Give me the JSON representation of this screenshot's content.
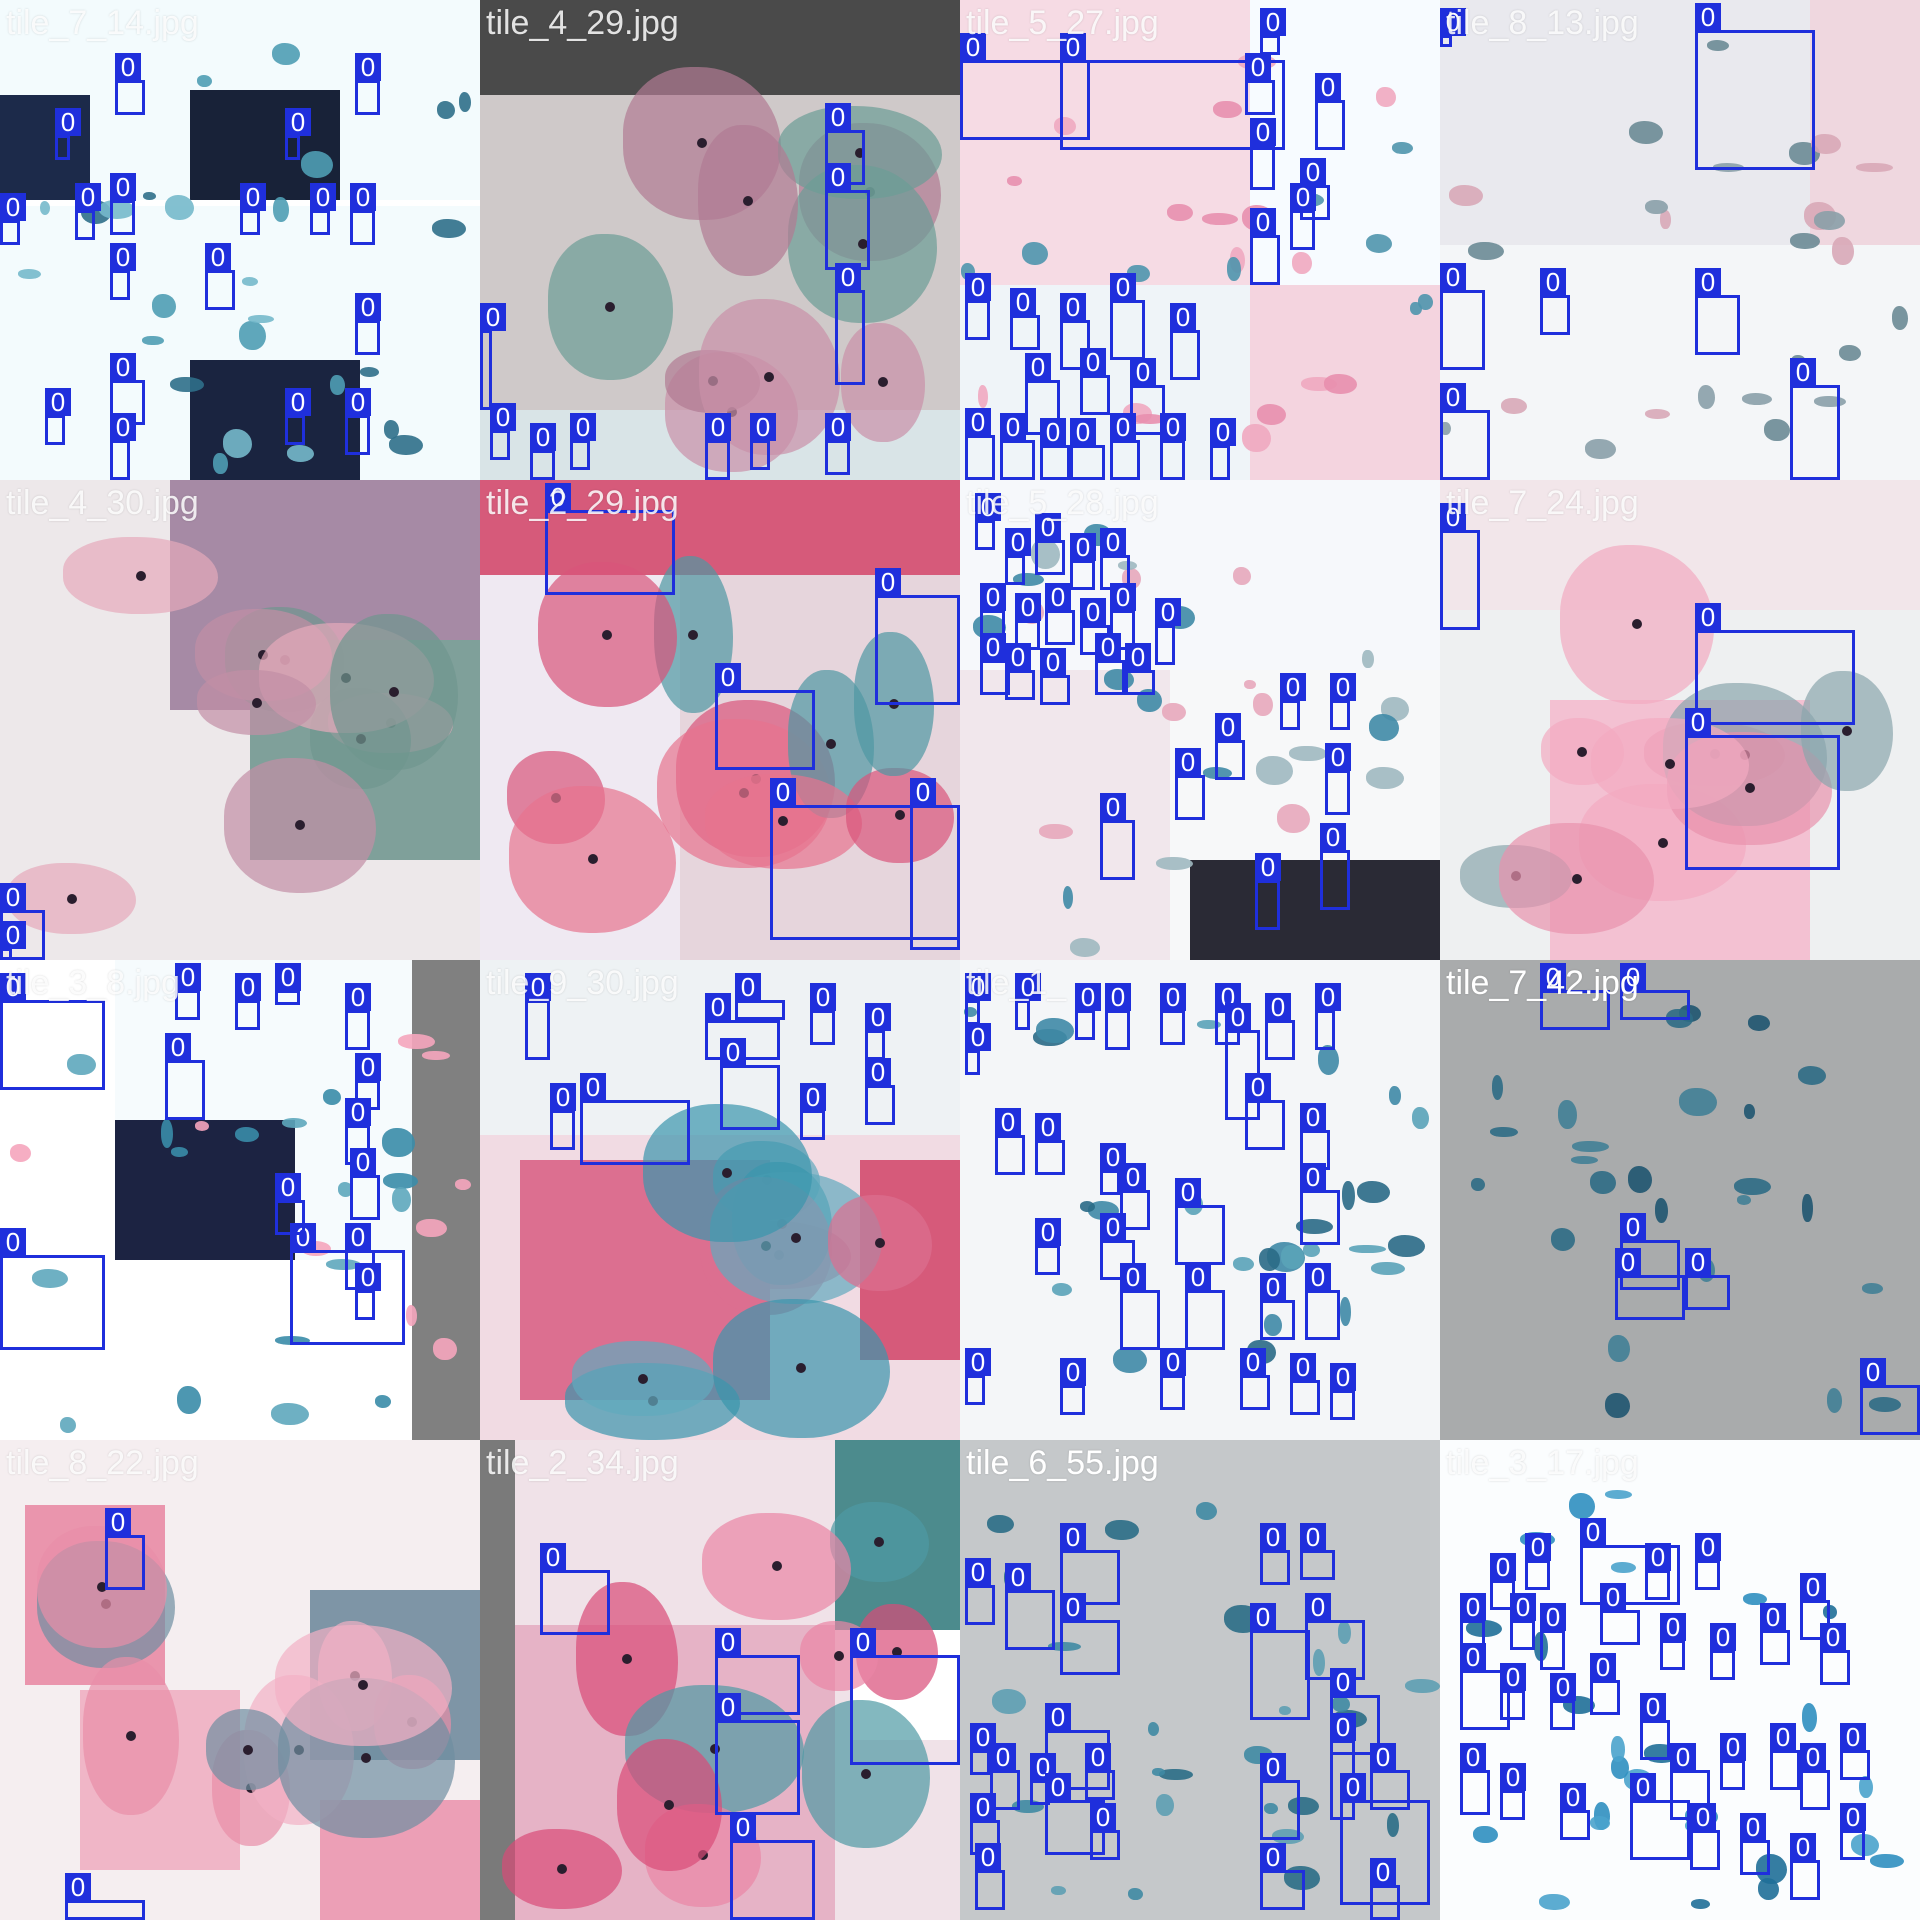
{
  "mosaic": {
    "colors": {
      "box": "#1f2fdc",
      "box_text": "#ffffff"
    },
    "tiles": [
      {
        "label": "tile_7_14.jpg",
        "style": "blue-sparse",
        "boxes": [
          {
            "label": "0"
          },
          {
            "label": "0"
          },
          {
            "label": "0"
          },
          {
            "label": "0"
          },
          {
            "label": "0"
          },
          {
            "label": "0"
          },
          {
            "label": "0"
          },
          {
            "label": "0"
          },
          {
            "label": "0"
          },
          {
            "label": "0"
          },
          {
            "label": "0"
          },
          {
            "label": "0"
          },
          {
            "label": "0"
          },
          {
            "label": "0"
          },
          {
            "label": "0"
          },
          {
            "label": "0"
          },
          {
            "label": "0"
          },
          {
            "label": "0"
          }
        ]
      },
      {
        "label": "tile_4_29.jpg",
        "style": "mixed-dark-header",
        "boxes": [
          {
            "label": "0"
          },
          {
            "label": "0"
          },
          {
            "label": "0"
          },
          {
            "label": "0"
          },
          {
            "label": "0"
          },
          {
            "label": "0"
          },
          {
            "label": "0"
          },
          {
            "label": "0"
          },
          {
            "label": "0"
          },
          {
            "label": "0"
          }
        ]
      },
      {
        "label": "tile_5_27.jpg",
        "style": "pink-mosaic",
        "boxes": [
          {
            "label": "0"
          },
          {
            "label": "0"
          },
          {
            "label": "0"
          },
          {
            "label": "0"
          },
          {
            "label": "0"
          },
          {
            "label": "0"
          },
          {
            "label": "0"
          },
          {
            "label": "0"
          },
          {
            "label": "0"
          },
          {
            "label": "0"
          },
          {
            "label": "0"
          },
          {
            "label": "0"
          },
          {
            "label": "0"
          },
          {
            "label": "0"
          },
          {
            "label": "0"
          },
          {
            "label": "0"
          },
          {
            "label": "0"
          },
          {
            "label": "0"
          },
          {
            "label": "0"
          },
          {
            "label": "0"
          },
          {
            "label": "0"
          },
          {
            "label": "0"
          },
          {
            "label": "0"
          },
          {
            "label": "0"
          }
        ]
      },
      {
        "label": "tile_8_13.jpg",
        "style": "grey-blue",
        "boxes": [
          {
            "label": "0"
          },
          {
            "label": "0"
          },
          {
            "label": "0"
          },
          {
            "label": "0"
          },
          {
            "label": "0"
          },
          {
            "label": "0"
          },
          {
            "label": "0"
          }
        ]
      },
      {
        "label": "tile_4_30.jpg",
        "style": "pink-green-large",
        "boxes": [
          {
            "label": "0"
          },
          {
            "label": "0"
          }
        ]
      },
      {
        "label": "tile_2_29.jpg",
        "style": "red-teal",
        "boxes": [
          {
            "label": "0"
          },
          {
            "label": "0"
          },
          {
            "label": "0"
          },
          {
            "label": "0"
          },
          {
            "label": "0"
          }
        ]
      },
      {
        "label": "tile_5_28.jpg",
        "style": "dense-blue-mix",
        "boxes": [
          {
            "label": "0"
          },
          {
            "label": "0"
          },
          {
            "label": "0"
          },
          {
            "label": "0"
          },
          {
            "label": "0"
          },
          {
            "label": "0"
          },
          {
            "label": "0"
          },
          {
            "label": "0"
          },
          {
            "label": "0"
          },
          {
            "label": "0"
          },
          {
            "label": "0"
          },
          {
            "label": "0"
          },
          {
            "label": "0"
          },
          {
            "label": "0"
          },
          {
            "label": "0"
          },
          {
            "label": "0"
          },
          {
            "label": "0"
          },
          {
            "label": "0"
          },
          {
            "label": "0"
          },
          {
            "label": "0"
          },
          {
            "label": "0"
          },
          {
            "label": "0"
          },
          {
            "label": "0"
          },
          {
            "label": "0"
          }
        ]
      },
      {
        "label": "tile_7_24.jpg",
        "style": "pink-grey",
        "boxes": [
          {
            "label": "0"
          },
          {
            "label": "0"
          },
          {
            "label": "0"
          }
        ]
      },
      {
        "label": "tile_3_8.jpg",
        "style": "blue-white-grey",
        "boxes": [
          {
            "label": "0"
          },
          {
            "label": "0"
          },
          {
            "label": "0"
          },
          {
            "label": "0"
          },
          {
            "label": "0"
          },
          {
            "label": "0"
          },
          {
            "label": "0"
          },
          {
            "label": "0"
          },
          {
            "label": "0"
          },
          {
            "label": "0"
          },
          {
            "label": "0"
          },
          {
            "label": "0"
          },
          {
            "label": "0"
          },
          {
            "label": "0"
          }
        ]
      },
      {
        "label": "tile_9_30.jpg",
        "style": "teal-pink",
        "boxes": [
          {
            "label": "0"
          },
          {
            "label": "0"
          },
          {
            "label": "0"
          },
          {
            "label": "0"
          },
          {
            "label": "0"
          },
          {
            "label": "0"
          },
          {
            "label": "0"
          },
          {
            "label": "0"
          },
          {
            "label": "0"
          },
          {
            "label": "0"
          }
        ]
      },
      {
        "label": "tile_1_",
        "style": "dense-blue",
        "boxes": [
          {
            "label": "0"
          },
          {
            "label": "0"
          },
          {
            "label": "0"
          },
          {
            "label": "0"
          },
          {
            "label": "0"
          },
          {
            "label": "0"
          },
          {
            "label": "0"
          },
          {
            "label": "0"
          },
          {
            "label": "0"
          },
          {
            "label": "0"
          },
          {
            "label": "0"
          },
          {
            "label": "0"
          },
          {
            "label": "0"
          },
          {
            "label": "0"
          },
          {
            "label": "0"
          },
          {
            "label": "0"
          },
          {
            "label": "0"
          },
          {
            "label": "0"
          },
          {
            "label": "0"
          },
          {
            "label": "0"
          },
          {
            "label": "0"
          },
          {
            "label": "0"
          },
          {
            "label": "0"
          },
          {
            "label": "0"
          },
          {
            "label": "0"
          },
          {
            "label": "0"
          },
          {
            "label": "0"
          },
          {
            "label": "0"
          },
          {
            "label": "0"
          },
          {
            "label": "0"
          }
        ]
      },
      {
        "label": "tile_7_42.jpg",
        "style": "grey-dark-cells",
        "boxes": [
          {
            "label": "0"
          },
          {
            "label": "0"
          },
          {
            "label": "0"
          },
          {
            "label": "0"
          },
          {
            "label": "0"
          },
          {
            "label": "0"
          }
        ]
      },
      {
        "label": "tile_8_22.jpg",
        "style": "pink-large",
        "boxes": [
          {
            "label": "0"
          },
          {
            "label": "0"
          }
        ]
      },
      {
        "label": "tile_2_34.jpg",
        "style": "pink-red-teal",
        "boxes": [
          {
            "label": "0"
          },
          {
            "label": "0"
          },
          {
            "label": "0"
          },
          {
            "label": "0"
          },
          {
            "label": "0"
          }
        ]
      },
      {
        "label": "tile_6_55.jpg",
        "style": "grey-teal",
        "boxes": [
          {
            "label": "0"
          },
          {
            "label": "0"
          },
          {
            "label": "0"
          },
          {
            "label": "0"
          },
          {
            "label": "0"
          },
          {
            "label": "0"
          },
          {
            "label": "0"
          },
          {
            "label": "0"
          },
          {
            "label": "0"
          },
          {
            "label": "0"
          },
          {
            "label": "0"
          },
          {
            "label": "0"
          },
          {
            "label": "0"
          },
          {
            "label": "0"
          },
          {
            "label": "0"
          },
          {
            "label": "0"
          },
          {
            "label": "0"
          },
          {
            "label": "0"
          },
          {
            "label": "0"
          },
          {
            "label": "0"
          },
          {
            "label": "0"
          },
          {
            "label": "0"
          },
          {
            "label": "0"
          },
          {
            "label": "0"
          }
        ]
      },
      {
        "label": "tile_3_17.jpg",
        "style": "dense-blue-white",
        "boxes": [
          {
            "label": "0"
          },
          {
            "label": "0"
          },
          {
            "label": "0"
          },
          {
            "label": "0"
          },
          {
            "label": "0"
          },
          {
            "label": "0"
          },
          {
            "label": "0"
          },
          {
            "label": "0"
          },
          {
            "label": "0"
          },
          {
            "label": "0"
          },
          {
            "label": "0"
          },
          {
            "label": "0"
          },
          {
            "label": "0"
          },
          {
            "label": "0"
          },
          {
            "label": "0"
          },
          {
            "label": "0"
          },
          {
            "label": "0"
          },
          {
            "label": "0"
          },
          {
            "label": "0"
          },
          {
            "label": "0"
          },
          {
            "label": "0"
          },
          {
            "label": "0"
          },
          {
            "label": "0"
          },
          {
            "label": "0"
          },
          {
            "label": "0"
          },
          {
            "label": "0"
          },
          {
            "label": "0"
          },
          {
            "label": "0"
          },
          {
            "label": "0"
          },
          {
            "label": "0"
          },
          {
            "label": "0"
          },
          {
            "label": "0"
          }
        ]
      }
    ]
  }
}
